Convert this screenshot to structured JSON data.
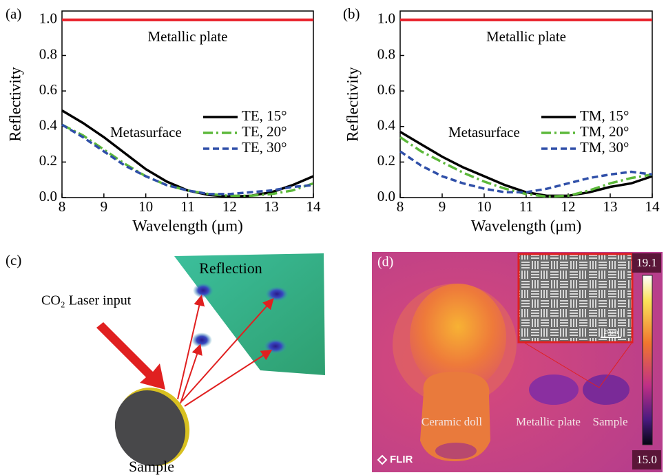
{
  "chart_data": [
    {
      "type": "line",
      "panel": "(a)",
      "xlabel": "Wavelength (μm)",
      "ylabel": "Reflectivity",
      "annotations": [
        "Metallic plate",
        "Metasurface"
      ],
      "x": [
        8,
        8.5,
        9,
        9.5,
        10,
        10.5,
        11,
        11.5,
        12,
        12.5,
        13,
        13.5,
        14
      ],
      "series": [
        {
          "name": "Metallic plate",
          "color": "#e8202a",
          "dash": "solid",
          "values": [
            1,
            1,
            1,
            1,
            1,
            1,
            1,
            1,
            1,
            1,
            1,
            1,
            1
          ]
        },
        {
          "name": "TE, 15°",
          "color": "#000000",
          "dash": "solid",
          "values": [
            0.49,
            0.42,
            0.34,
            0.25,
            0.16,
            0.09,
            0.04,
            0.015,
            0.005,
            0.01,
            0.03,
            0.07,
            0.12
          ]
        },
        {
          "name": "TE, 20°",
          "color": "#5cb83a",
          "dash": "dashdot",
          "values": [
            0.41,
            0.35,
            0.27,
            0.19,
            0.12,
            0.07,
            0.04,
            0.02,
            0.01,
            0.01,
            0.02,
            0.04,
            0.08
          ]
        },
        {
          "name": "TE, 30°",
          "color": "#2f4fa8",
          "dash": "dash",
          "values": [
            0.41,
            0.34,
            0.26,
            0.18,
            0.12,
            0.07,
            0.04,
            0.02,
            0.02,
            0.03,
            0.04,
            0.06,
            0.07
          ]
        }
      ],
      "xlim": [
        8,
        14
      ],
      "xticks": [
        8,
        9,
        10,
        11,
        12,
        13,
        14
      ],
      "ylim": [
        0,
        1.05
      ],
      "yticks": [
        {
          "value": 0,
          "label": "0.0"
        },
        {
          "value": 0.2,
          "label": "0.2"
        },
        {
          "value": 0.4,
          "label": "0.4"
        },
        {
          "value": 0.6,
          "label": "0.6"
        },
        {
          "value": 0.8,
          "label": "0.8"
        },
        {
          "value": 1,
          "label": "1.0"
        }
      ]
    },
    {
      "type": "line",
      "panel": "(b)",
      "xlabel": "Wavelength (μm)",
      "ylabel": "Reflectivity",
      "annotations": [
        "Metallic plate",
        "Metasurface"
      ],
      "x": [
        8,
        8.5,
        9,
        9.5,
        10,
        10.5,
        11,
        11.5,
        12,
        12.5,
        13,
        13.5,
        14
      ],
      "series": [
        {
          "name": "Metallic plate",
          "color": "#e8202a",
          "dash": "solid",
          "values": [
            1,
            1,
            1,
            1,
            1,
            1,
            1,
            1,
            1,
            1,
            1,
            1,
            1
          ]
        },
        {
          "name": "TM, 15°",
          "color": "#000000",
          "dash": "solid",
          "values": [
            0.37,
            0.3,
            0.23,
            0.17,
            0.12,
            0.07,
            0.03,
            0.01,
            0.01,
            0.03,
            0.06,
            0.08,
            0.12
          ]
        },
        {
          "name": "TM, 20°",
          "color": "#5cb83a",
          "dash": "dashdot",
          "values": [
            0.34,
            0.26,
            0.2,
            0.14,
            0.09,
            0.05,
            0.02,
            0.005,
            0.01,
            0.04,
            0.08,
            0.11,
            0.13
          ]
        },
        {
          "name": "TM, 30°",
          "color": "#2f4fa8",
          "dash": "dash",
          "values": [
            0.26,
            0.18,
            0.12,
            0.08,
            0.05,
            0.03,
            0.03,
            0.05,
            0.08,
            0.11,
            0.13,
            0.145,
            0.13
          ]
        }
      ],
      "xlim": [
        8,
        14
      ],
      "xticks": [
        8,
        9,
        10,
        11,
        12,
        13,
        14
      ],
      "ylim": [
        0,
        1.05
      ],
      "yticks": [
        {
          "value": 0,
          "label": "0.0"
        },
        {
          "value": 0.2,
          "label": "0.2"
        },
        {
          "value": 0.4,
          "label": "0.4"
        },
        {
          "value": 0.6,
          "label": "0.6"
        },
        {
          "value": 0.8,
          "label": "0.8"
        },
        {
          "value": 1,
          "label": "1.0"
        }
      ]
    }
  ],
  "panels": [
    {
      "label": "(c)",
      "reflection": "Reflection",
      "laser": "CO₂ Laser input",
      "sample": "Sample"
    },
    {
      "label": "(d)",
      "scale_max": "19.1",
      "scale_min": "15.0",
      "doll": "Ceramic doll",
      "plate": "Metallic plate",
      "sample": "Sample",
      "brand": "FLIR",
      "scale_bar": "20μm"
    }
  ]
}
